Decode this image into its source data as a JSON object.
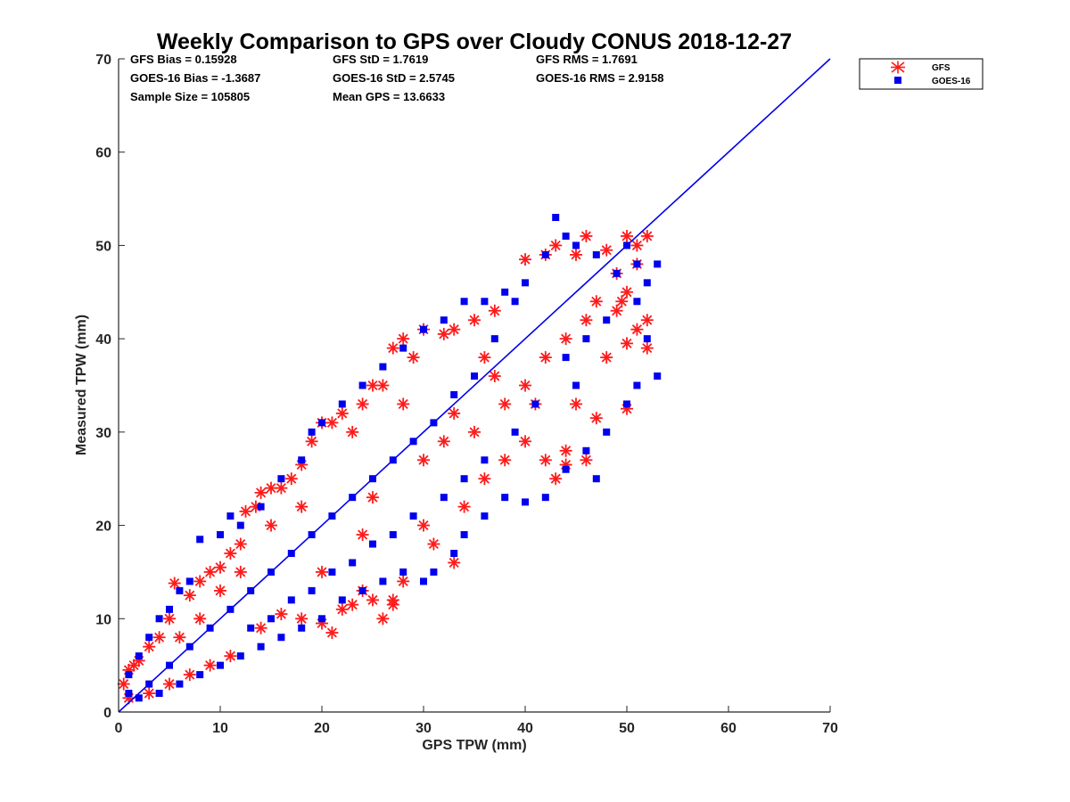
{
  "chart_data": {
    "type": "scatter",
    "title": "Weekly Comparison to GPS over Cloudy CONUS 2018-12-27",
    "xlabel": "GPS TPW (mm)",
    "ylabel": "Measured TPW (mm)",
    "xlim": [
      0,
      70
    ],
    "ylim": [
      0,
      70
    ],
    "xticks": [
      0,
      10,
      20,
      30,
      40,
      50,
      60,
      70
    ],
    "yticks": [
      0,
      10,
      20,
      30,
      40,
      50,
      60,
      70
    ],
    "grid": false,
    "legend_position": "outside-top-right",
    "stats": [
      [
        "GFS Bias = 0.15928",
        "GFS StD = 1.7619",
        "GFS RMS = 1.7691"
      ],
      [
        "GOES-16 Bias = -1.3687",
        "GOES-16 StD = 2.5745",
        "GOES-16 RMS = 2.9158"
      ],
      [
        "Sample Size = 105805",
        "Mean GPS = 13.6633",
        ""
      ]
    ],
    "reference_line": {
      "x": [
        0,
        70
      ],
      "y": [
        0,
        70
      ],
      "color": "#0000ee"
    },
    "series": [
      {
        "name": "GFS",
        "marker": "asterisk",
        "color": "#ff1a1a",
        "points": [
          [
            0.5,
            3
          ],
          [
            1,
            4.5
          ],
          [
            1.5,
            5
          ],
          [
            2,
            5.5
          ],
          [
            3,
            7
          ],
          [
            4,
            8
          ],
          [
            5,
            10
          ],
          [
            5.5,
            13.8
          ],
          [
            7,
            12.5
          ],
          [
            8,
            14
          ],
          [
            9,
            15
          ],
          [
            10,
            15.5
          ],
          [
            11,
            17
          ],
          [
            12,
            18
          ],
          [
            12.5,
            21.5
          ],
          [
            13.5,
            22
          ],
          [
            14,
            23.5
          ],
          [
            15,
            24
          ],
          [
            16,
            24
          ],
          [
            17,
            25
          ],
          [
            18,
            26.5
          ],
          [
            19,
            29
          ],
          [
            20,
            31
          ],
          [
            21,
            31
          ],
          [
            22,
            32
          ],
          [
            23,
            30
          ],
          [
            24,
            33
          ],
          [
            25,
            35
          ],
          [
            26,
            35
          ],
          [
            27,
            39
          ],
          [
            28,
            40
          ],
          [
            29,
            38
          ],
          [
            30,
            41
          ],
          [
            32,
            40.5
          ],
          [
            33,
            41
          ],
          [
            35,
            42
          ],
          [
            37,
            43
          ],
          [
            40,
            48.5
          ],
          [
            42,
            49
          ],
          [
            43,
            50
          ],
          [
            45,
            49
          ],
          [
            46,
            51
          ],
          [
            48,
            49.5
          ],
          [
            50,
            51
          ],
          [
            51,
            50
          ],
          [
            52,
            51
          ],
          [
            50,
            45
          ],
          [
            49,
            43
          ],
          [
            51,
            41
          ],
          [
            52,
            42
          ],
          [
            50,
            39.5
          ],
          [
            48,
            38
          ],
          [
            45,
            33
          ],
          [
            46,
            27
          ],
          [
            44,
            26.5
          ],
          [
            43,
            25
          ],
          [
            42,
            27
          ],
          [
            40,
            29
          ],
          [
            38,
            27
          ],
          [
            36,
            25
          ],
          [
            34,
            22
          ],
          [
            33,
            16
          ],
          [
            31,
            18
          ],
          [
            30,
            20
          ],
          [
            28,
            14
          ],
          [
            27,
            12
          ],
          [
            26,
            10
          ],
          [
            24,
            13
          ],
          [
            22,
            11
          ],
          [
            21,
            8.5
          ],
          [
            20,
            9.5
          ],
          [
            18,
            10
          ],
          [
            16,
            10.5
          ],
          [
            14,
            9
          ],
          [
            11,
            6
          ],
          [
            9,
            5
          ],
          [
            7,
            4
          ],
          [
            5,
            3
          ],
          [
            3,
            2
          ],
          [
            1,
            1.5
          ],
          [
            25,
            12
          ],
          [
            23,
            11.5
          ],
          [
            27,
            11.5
          ],
          [
            20,
            15
          ],
          [
            15,
            20
          ],
          [
            10,
            13
          ],
          [
            8,
            10
          ],
          [
            6,
            8
          ],
          [
            35,
            30
          ],
          [
            38,
            33
          ],
          [
            40,
            35
          ],
          [
            42,
            38
          ],
          [
            44,
            40
          ],
          [
            46,
            42
          ],
          [
            47,
            44
          ],
          [
            49,
            47
          ],
          [
            25,
            23
          ],
          [
            30,
            27
          ],
          [
            33,
            32
          ],
          [
            36,
            38
          ],
          [
            28,
            33
          ],
          [
            18,
            22
          ],
          [
            12,
            15
          ],
          [
            47,
            31.5
          ],
          [
            50,
            32.5
          ],
          [
            49.5,
            44
          ],
          [
            51,
            48
          ],
          [
            52,
            39
          ],
          [
            44,
            28
          ],
          [
            41,
            33
          ],
          [
            37,
            36
          ],
          [
            32,
            29
          ],
          [
            24,
            19
          ]
        ]
      },
      {
        "name": "GOES-16",
        "marker": "square",
        "color": "#0000ee",
        "points": [
          [
            43,
            53
          ],
          [
            42,
            49
          ],
          [
            44,
            51
          ],
          [
            45,
            50
          ],
          [
            47,
            49
          ],
          [
            49,
            47
          ],
          [
            50,
            50
          ],
          [
            51,
            48
          ],
          [
            53,
            48
          ],
          [
            52,
            46
          ],
          [
            51,
            44
          ],
          [
            52,
            40
          ],
          [
            53,
            36
          ],
          [
            51,
            35
          ],
          [
            50,
            33
          ],
          [
            48,
            30
          ],
          [
            46,
            28
          ],
          [
            47,
            25
          ],
          [
            44,
            26
          ],
          [
            42,
            23
          ],
          [
            40,
            22.5
          ],
          [
            38,
            23
          ],
          [
            36,
            21
          ],
          [
            34,
            19
          ],
          [
            33,
            17
          ],
          [
            31,
            15
          ],
          [
            30,
            14
          ],
          [
            28,
            15
          ],
          [
            26,
            14
          ],
          [
            24,
            13
          ],
          [
            22,
            12
          ],
          [
            20,
            10
          ],
          [
            18,
            9
          ],
          [
            16,
            8
          ],
          [
            14,
            7
          ],
          [
            12,
            6
          ],
          [
            10,
            5
          ],
          [
            8,
            4
          ],
          [
            6,
            3
          ],
          [
            4,
            2
          ],
          [
            2,
            1.5
          ],
          [
            1,
            2
          ],
          [
            1,
            4
          ],
          [
            2,
            6
          ],
          [
            3,
            8
          ],
          [
            4,
            10
          ],
          [
            5,
            11
          ],
          [
            6,
            13
          ],
          [
            7,
            14
          ],
          [
            8,
            18.5
          ],
          [
            10,
            19
          ],
          [
            11,
            21
          ],
          [
            12,
            20
          ],
          [
            14,
            22
          ],
          [
            16,
            25
          ],
          [
            18,
            27
          ],
          [
            19,
            30
          ],
          [
            20,
            31
          ],
          [
            22,
            33
          ],
          [
            24,
            35
          ],
          [
            26,
            37
          ],
          [
            28,
            39
          ],
          [
            30,
            41
          ],
          [
            32,
            42
          ],
          [
            34,
            44
          ],
          [
            36,
            44
          ],
          [
            38,
            45
          ],
          [
            40,
            46
          ],
          [
            39,
            44
          ],
          [
            37,
            40
          ],
          [
            35,
            36
          ],
          [
            33,
            34
          ],
          [
            31,
            31
          ],
          [
            29,
            29
          ],
          [
            27,
            27
          ],
          [
            25,
            25
          ],
          [
            23,
            23
          ],
          [
            21,
            21
          ],
          [
            19,
            19
          ],
          [
            17,
            17
          ],
          [
            15,
            15
          ],
          [
            13,
            13
          ],
          [
            11,
            11
          ],
          [
            9,
            9
          ],
          [
            7,
            7
          ],
          [
            5,
            5
          ],
          [
            3,
            3
          ],
          [
            44,
            38
          ],
          [
            46,
            40
          ],
          [
            48,
            42
          ],
          [
            45,
            35
          ],
          [
            41,
            33
          ],
          [
            39,
            30
          ],
          [
            36,
            27
          ],
          [
            34,
            25
          ],
          [
            32,
            23
          ],
          [
            29,
            21
          ],
          [
            27,
            19
          ],
          [
            25,
            18
          ],
          [
            23,
            16
          ],
          [
            21,
            15
          ],
          [
            19,
            13
          ],
          [
            17,
            12
          ],
          [
            15,
            10
          ],
          [
            13,
            9
          ]
        ]
      }
    ]
  }
}
